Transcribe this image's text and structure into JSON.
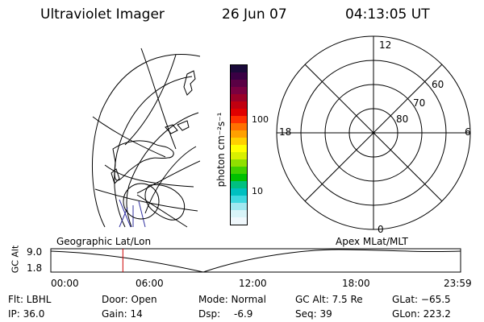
{
  "header": {
    "instrument": "Ultraviolet Imager",
    "date": "26 Jun 07",
    "time": "04:13:05 UT"
  },
  "colorbar": {
    "unit_label": "photon cm⁻²s⁻¹",
    "ticks": [
      "100",
      "10"
    ],
    "colors": [
      "#1a0a3a",
      "#3a0044",
      "#5a0044",
      "#7a0040",
      "#9a0028",
      "#c00010",
      "#e00000",
      "#ff3000",
      "#ff7000",
      "#ffa000",
      "#ffd000",
      "#ffff00",
      "#d8f000",
      "#90e000",
      "#40d000",
      "#00c000",
      "#00c080",
      "#00c0c0",
      "#40d8e0",
      "#a0e8f0",
      "#d8f4f8",
      "#f0f8fc"
    ]
  },
  "polar_plot": {
    "lat_labels": [
      "60",
      "70",
      "80"
    ],
    "mlt_labels": {
      "top": "12",
      "left": "18",
      "right": "6",
      "bottom": "0"
    }
  },
  "timeline": {
    "left_title": "Geographic Lat/Lon",
    "right_title": "Apex MLat/MLT",
    "y_axis_title": "GC Alt",
    "y_ticks": [
      "9.0",
      "1.8"
    ],
    "x_ticks": [
      "00:00",
      "06:00",
      "12:00",
      "18:00",
      "23:59"
    ],
    "current_time_hours": 4.22
  },
  "info": {
    "filter": "Flt: LBHL",
    "ip": "IP: 36.0",
    "door": "Door: Open",
    "gain": "Gain: 14",
    "mode": "Mode: Normal",
    "dsp": "Dsp:",
    "dsp_value": "-6.9",
    "gc_alt": "GC Alt: 7.5 Re",
    "seq": "Seq: 39",
    "glat": "GLat: −65.5",
    "glon": "GLon: 223.2"
  },
  "colors": {
    "marker": "#cc0000",
    "earth_meridian": "#3030a0"
  }
}
